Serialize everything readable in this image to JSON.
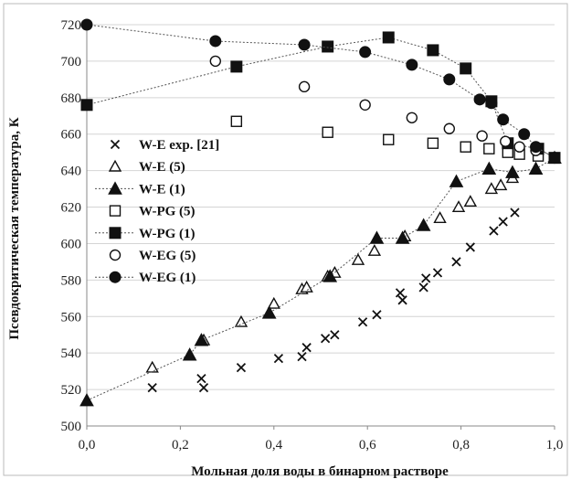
{
  "chart_data": {
    "type": "scatter",
    "xlabel": "Мольная доля воды в бинарном растворе",
    "ylabel": "Псевдокритическая температура, К",
    "xlim": [
      0,
      1
    ],
    "ylim": [
      500,
      720
    ],
    "x_ticks": [
      "0,0",
      "0,2",
      "0,4",
      "0,6",
      "0,8",
      "1,0"
    ],
    "y_ticks": [
      "500",
      "520",
      "540",
      "560",
      "580",
      "600",
      "620",
      "640",
      "660",
      "680",
      "700",
      "720"
    ],
    "grid": "horizontal",
    "legend_position": "left",
    "series": [
      {
        "name": "W-E exp. [21]",
        "marker": "x",
        "line": false,
        "points": [
          [
            0.14,
            521
          ],
          [
            0.245,
            526
          ],
          [
            0.25,
            521
          ],
          [
            0.33,
            532
          ],
          [
            0.41,
            537
          ],
          [
            0.46,
            538
          ],
          [
            0.47,
            543
          ],
          [
            0.51,
            548
          ],
          [
            0.53,
            550
          ],
          [
            0.59,
            557
          ],
          [
            0.62,
            561
          ],
          [
            0.67,
            573
          ],
          [
            0.675,
            569
          ],
          [
            0.72,
            576
          ],
          [
            0.725,
            581
          ],
          [
            0.75,
            584
          ],
          [
            0.79,
            590
          ],
          [
            0.82,
            598
          ],
          [
            0.87,
            607
          ],
          [
            0.89,
            612
          ],
          [
            0.915,
            617
          ]
        ]
      },
      {
        "name": "W-E (5)",
        "marker": "triangle-open",
        "line": false,
        "points": [
          [
            0.14,
            532
          ],
          [
            0.25,
            547
          ],
          [
            0.33,
            557
          ],
          [
            0.4,
            567
          ],
          [
            0.46,
            575
          ],
          [
            0.47,
            576
          ],
          [
            0.515,
            582
          ],
          [
            0.53,
            584
          ],
          [
            0.58,
            591
          ],
          [
            0.615,
            596
          ],
          [
            0.68,
            604
          ],
          [
            0.755,
            614
          ],
          [
            0.795,
            620
          ],
          [
            0.82,
            623
          ],
          [
            0.865,
            630
          ],
          [
            0.885,
            632
          ],
          [
            0.91,
            636
          ]
        ]
      },
      {
        "name": "W-E (1)",
        "marker": "triangle-filled",
        "line": true,
        "points": [
          [
            0.0,
            514
          ],
          [
            0.22,
            539
          ],
          [
            0.245,
            547
          ],
          [
            0.39,
            562
          ],
          [
            0.52,
            582
          ],
          [
            0.62,
            603
          ],
          [
            0.675,
            603
          ],
          [
            0.72,
            610
          ],
          [
            0.79,
            634
          ],
          [
            0.86,
            641
          ],
          [
            0.91,
            639
          ],
          [
            0.96,
            641
          ],
          [
            1.0,
            647
          ]
        ]
      },
      {
        "name": "W-PG (5)",
        "marker": "square-open",
        "line": false,
        "points": [
          [
            0.32,
            667
          ],
          [
            0.515,
            661
          ],
          [
            0.645,
            657
          ],
          [
            0.74,
            655
          ],
          [
            0.81,
            653
          ],
          [
            0.86,
            652
          ],
          [
            0.9,
            650
          ],
          [
            0.925,
            649
          ],
          [
            0.965,
            648
          ]
        ]
      },
      {
        "name": "W-PG (1)",
        "marker": "square-filled",
        "line": true,
        "points": [
          [
            0.0,
            676
          ],
          [
            0.32,
            697
          ],
          [
            0.515,
            708
          ],
          [
            0.645,
            713
          ],
          [
            0.74,
            706
          ],
          [
            0.81,
            696
          ],
          [
            0.865,
            678
          ],
          [
            0.9,
            655
          ],
          [
            0.965,
            652
          ],
          [
            1.0,
            647
          ]
        ]
      },
      {
        "name": "W-EG (5)",
        "marker": "circle-open",
        "line": false,
        "points": [
          [
            0.275,
            700
          ],
          [
            0.465,
            686
          ],
          [
            0.595,
            676
          ],
          [
            0.695,
            669
          ],
          [
            0.775,
            663
          ],
          [
            0.845,
            659
          ],
          [
            0.895,
            656
          ],
          [
            0.925,
            653
          ],
          [
            0.96,
            651
          ]
        ]
      },
      {
        "name": "W-EG (1)",
        "marker": "circle-filled",
        "line": true,
        "points": [
          [
            0.0,
            720
          ],
          [
            0.275,
            711
          ],
          [
            0.465,
            709
          ],
          [
            0.595,
            705
          ],
          [
            0.695,
            698
          ],
          [
            0.775,
            690
          ],
          [
            0.84,
            679
          ],
          [
            0.865,
            677
          ],
          [
            0.89,
            668
          ],
          [
            0.935,
            660
          ],
          [
            0.96,
            653
          ],
          [
            1.0,
            647
          ]
        ]
      }
    ]
  }
}
